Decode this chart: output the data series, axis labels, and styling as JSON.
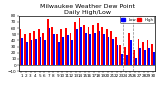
{
  "title": "Milwaukee Weather Dew Point\nDaily High/Low",
  "background_color": "#ffffff",
  "plot_bg_color": "#ffffff",
  "bar_width": 0.4,
  "days": [
    1,
    2,
    3,
    4,
    5,
    6,
    7,
    8,
    9,
    10,
    11,
    12,
    13,
    14,
    15,
    16,
    17,
    18,
    19,
    20,
    21,
    22,
    23,
    24,
    25,
    26,
    27,
    28,
    29,
    30
  ],
  "high": [
    58,
    50,
    52,
    55,
    58,
    52,
    75,
    62,
    50,
    58,
    60,
    52,
    70,
    76,
    65,
    62,
    65,
    68,
    62,
    58,
    55,
    45,
    32,
    30,
    52,
    25,
    42,
    38,
    40,
    35
  ],
  "low": [
    44,
    38,
    40,
    42,
    46,
    40,
    60,
    50,
    38,
    46,
    48,
    40,
    58,
    62,
    52,
    50,
    52,
    56,
    50,
    46,
    42,
    32,
    18,
    16,
    40,
    12,
    28,
    25,
    28,
    22
  ],
  "ylim": [
    -10,
    80
  ],
  "yticks": [
    -10,
    0,
    10,
    20,
    30,
    40,
    50,
    60,
    70,
    80
  ],
  "dashed_vlines": [
    23.5,
    25.5
  ],
  "bar_color_high": "#ff0000",
  "bar_color_low": "#0000ff",
  "title_fontsize": 4.5,
  "tick_fontsize": 3.0,
  "xlim": [
    0.5,
    30.5
  ]
}
